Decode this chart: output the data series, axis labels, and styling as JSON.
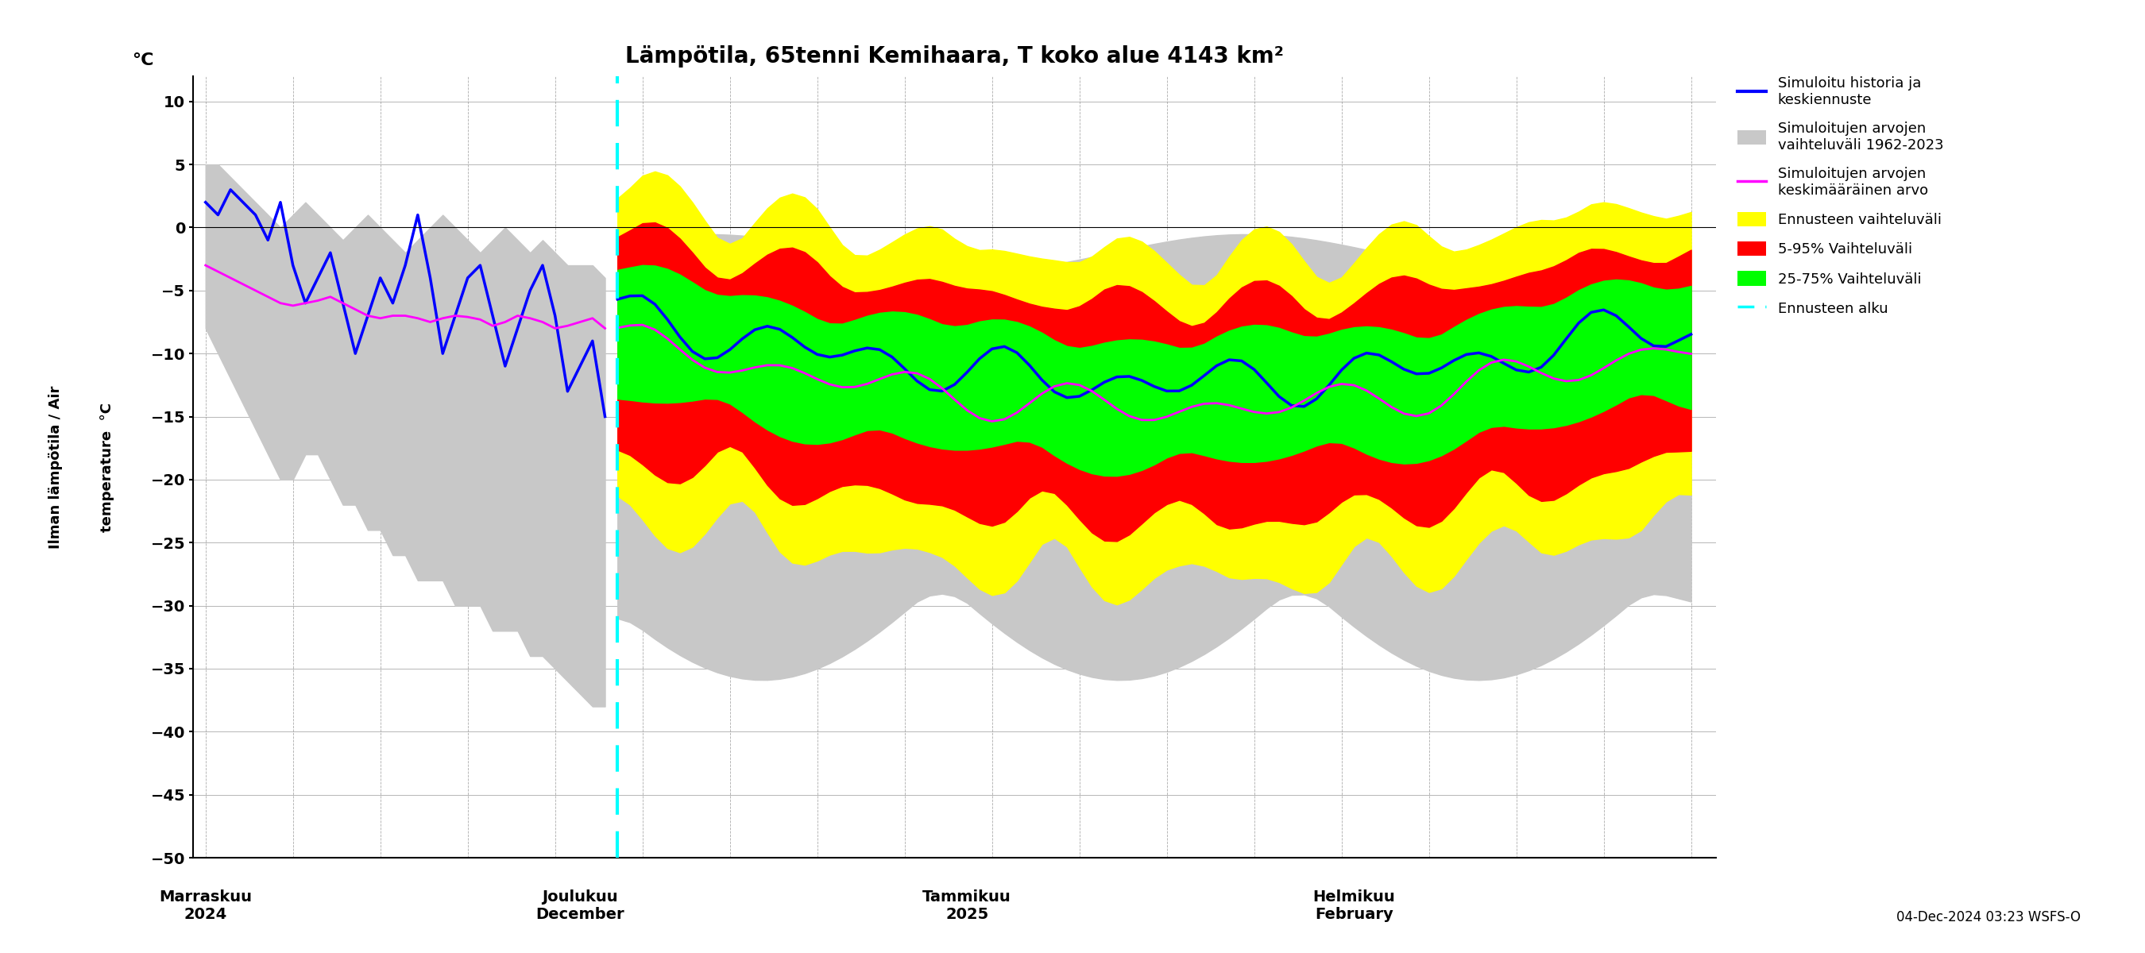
{
  "title": "Lämpötila, 65tenni Kemihaara, T koko alue 4143 km²",
  "ylabel_fi": "Ilman lämpötila / Air",
  "ylabel_en": "temperature  °C",
  "ylabel_left": "°C",
  "timestamp": "04-Dec-2024 03:23 WSFS-O",
  "ylim": [
    -50,
    12
  ],
  "yticks": [
    -50,
    -45,
    -40,
    -35,
    -30,
    -25,
    -20,
    -15,
    -10,
    -5,
    0,
    5,
    10
  ],
  "background_color": "#ffffff",
  "colors": {
    "gray_band": "#c8c8c8",
    "yellow_band": "#ffff00",
    "red_band": "#ff0000",
    "green_band": "#00ff00",
    "blue_line": "#0000ff",
    "magenta_line": "#ff00ff",
    "cyan_dashed": "#00ffff"
  }
}
